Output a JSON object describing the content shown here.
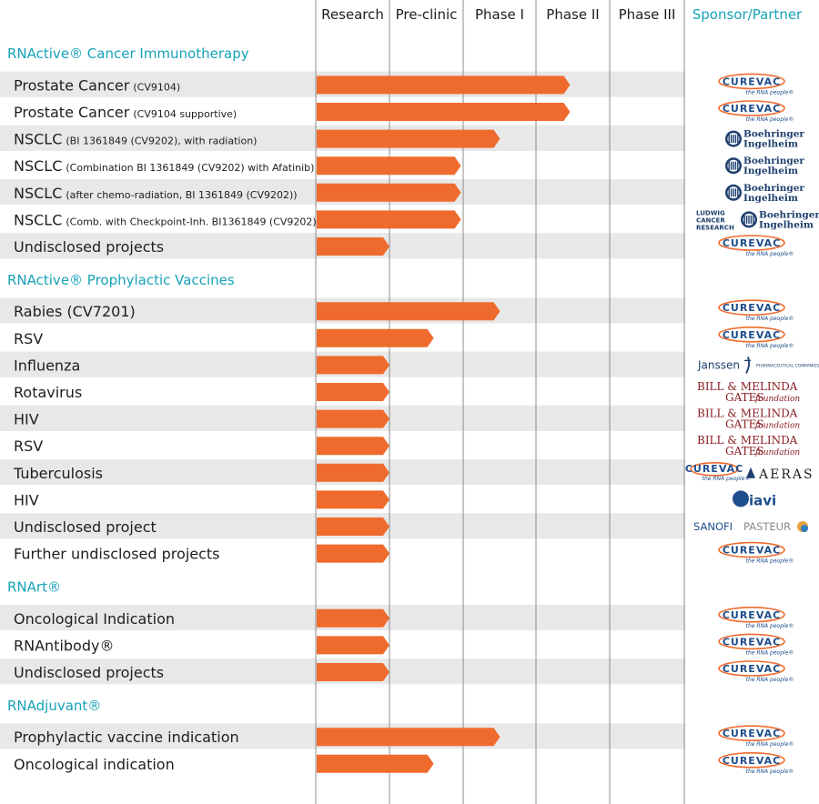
{
  "chart_data": {
    "type": "bar",
    "orientation": "horizontal",
    "columns": [
      "Research",
      "Pre-clinic",
      "Phase I",
      "Phase II",
      "Phase III"
    ],
    "partner_column": "Sponsor/Partner",
    "bar_color": "#ef6b2d",
    "section_color": "#17a2b8",
    "sections": [
      {
        "title": "RNActive® Cancer Immunotherapy",
        "rows": [
          {
            "name": "Prostate Cancer",
            "detail": "(CV9104)",
            "progress": 3.45,
            "partners": [
              "curevac"
            ]
          },
          {
            "name": "Prostate Cancer",
            "detail": "(CV9104 supportive)",
            "progress": 3.45,
            "partners": [
              "curevac"
            ]
          },
          {
            "name": "NSCLC",
            "detail": "(BI 1361849 (CV9202), with radiation)",
            "progress": 2.5,
            "partners": [
              "boehringer"
            ]
          },
          {
            "name": "NSCLC",
            "detail": "(Combination BI 1361849 (CV9202) with Afatinib)",
            "progress": 1.97,
            "partners": [
              "boehringer"
            ]
          },
          {
            "name": "NSCLC",
            "detail": "(after chemo-radiation, BI 1361849 (CV9202))",
            "progress": 1.97,
            "partners": [
              "boehringer"
            ]
          },
          {
            "name": "NSCLC",
            "detail": "(Comb. with Checkpoint-Inh. BI1361849 (CV9202))",
            "progress": 1.97,
            "partners": [
              "ludwig",
              "boehringer"
            ]
          },
          {
            "name": "Undisclosed projects",
            "detail": "",
            "progress": 1.0,
            "partners": [
              "curevac"
            ]
          }
        ]
      },
      {
        "title": "RNActive® Prophylactic Vaccines",
        "rows": [
          {
            "name": "Rabies (CV7201)",
            "detail": "",
            "progress": 2.5,
            "partners": [
              "curevac"
            ]
          },
          {
            "name": "RSV",
            "detail": "",
            "progress": 1.6,
            "partners": [
              "curevac"
            ]
          },
          {
            "name": "Influenza",
            "detail": "",
            "progress": 1.0,
            "partners": [
              "janssen"
            ]
          },
          {
            "name": "Rotavirus",
            "detail": "",
            "progress": 1.0,
            "partners": [
              "gates"
            ]
          },
          {
            "name": "HIV",
            "detail": "",
            "progress": 1.0,
            "partners": [
              "gates"
            ]
          },
          {
            "name": "RSV",
            "detail": "",
            "progress": 1.0,
            "partners": [
              "gates"
            ]
          },
          {
            "name": "Tuberculosis",
            "detail": "",
            "progress": 1.0,
            "partners": [
              "curevac",
              "aeras"
            ]
          },
          {
            "name": "HIV",
            "detail": "",
            "progress": 1.0,
            "partners": [
              "iavi"
            ]
          },
          {
            "name": "Undisclosed project",
            "detail": "",
            "progress": 1.0,
            "partners": [
              "sanofi"
            ]
          },
          {
            "name": "Further undisclosed projects",
            "detail": "",
            "progress": 1.0,
            "partners": [
              "curevac"
            ]
          }
        ]
      },
      {
        "title": "RNArt®",
        "rows": [
          {
            "name": "Oncological Indication",
            "detail": "",
            "progress": 1.0,
            "partners": [
              "curevac"
            ]
          },
          {
            "name": "RNAntibody®",
            "detail": "",
            "progress": 1.0,
            "partners": [
              "curevac"
            ]
          },
          {
            "name": "Undisclosed projects",
            "detail": "",
            "progress": 1.0,
            "partners": [
              "curevac"
            ]
          }
        ]
      },
      {
        "title": "RNAdjuvant®",
        "rows": [
          {
            "name": "Prophylactic vaccine indication",
            "detail": "",
            "progress": 2.5,
            "partners": [
              "curevac"
            ]
          },
          {
            "name": "Oncological indication",
            "detail": "",
            "progress": 1.6,
            "partners": [
              "curevac"
            ]
          }
        ]
      }
    ]
  },
  "logos": {
    "curevac": {
      "text": "CUREVAC",
      "tagline": "the RNA people®"
    },
    "boehringer": {
      "line1": "Boehringer",
      "line2": "Ingelheim"
    },
    "ludwig": {
      "lines": [
        "LUDWIG",
        "CANCER",
        "RESEARCH"
      ]
    },
    "janssen": {
      "text": "Janssen",
      "small": "PHARMACEUTICAL COMPANIES OF Johnson & Johnson"
    },
    "gates": {
      "line1": "BILL & MELINDA",
      "line2": "GATES",
      "line3": "foundation"
    },
    "aeras": {
      "text": "AERAS"
    },
    "iavi": {
      "text": "iavi"
    },
    "sanofi": {
      "text1": "SANOFI",
      "text2": "PASTEUR"
    }
  }
}
